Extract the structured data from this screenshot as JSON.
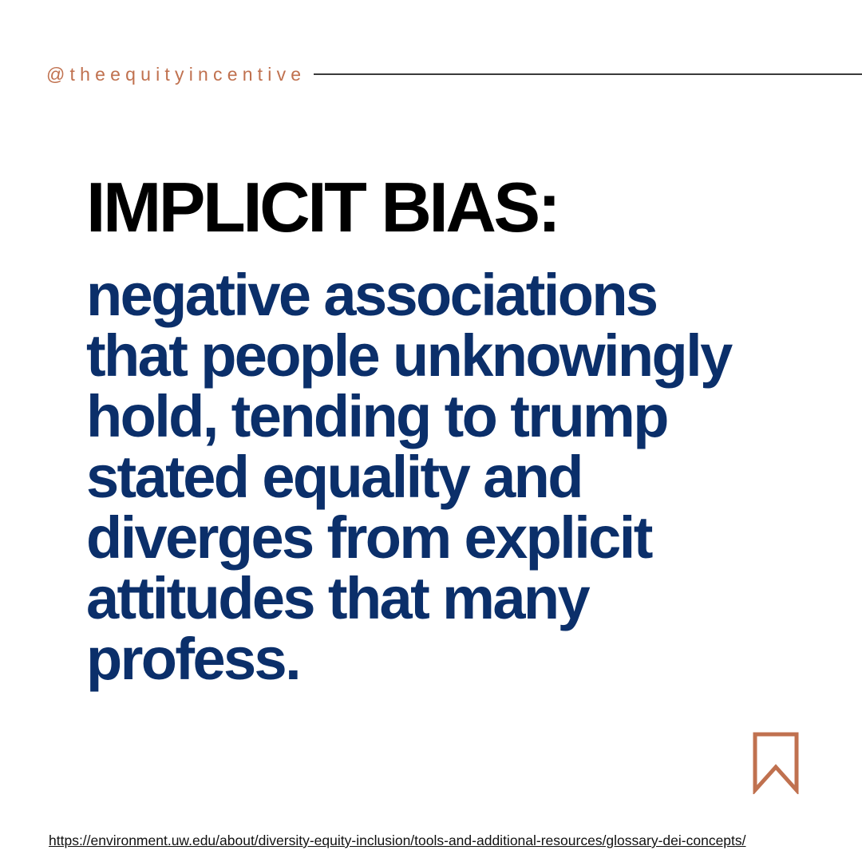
{
  "header": {
    "handle": "@theequityincentive"
  },
  "main": {
    "title": "IMPLICIT BIAS:",
    "definition_lines": [
      "negative associations",
      "that people unknowingly",
      "hold, tending to trump",
      "stated equality and",
      "diverges from explicit",
      "attitudes that many",
      "profess."
    ]
  },
  "footer": {
    "source_url": "https://environment.uw.edu/about/diversity-equity-inclusion/tools-and-additional-resources/glossary-dei-concepts/",
    "bookmark_icon": "bookmark-icon"
  },
  "colors": {
    "accent": "#c0714f",
    "title": "#000000",
    "definition": "#0b2f6a",
    "line": "#3a3a3a",
    "link": "#111111",
    "background": "#ffffff"
  }
}
